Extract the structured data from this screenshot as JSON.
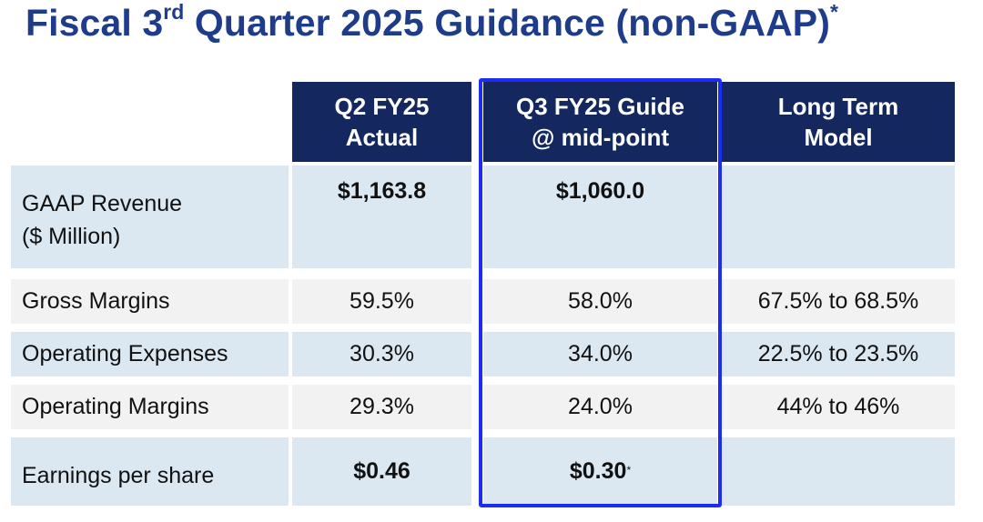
{
  "title": {
    "prefix": "Fiscal 3",
    "superscript": "rd",
    "rest": " Quarter 2025 Guidance (non-GAAP)",
    "asterisk": "*"
  },
  "columns": [
    {
      "line1": "Q2 FY25",
      "line2": "Actual"
    },
    {
      "line1": "Q3 FY25 Guide",
      "line2": "@ mid-point"
    },
    {
      "line1": "Long Term",
      "line2": "Model"
    }
  ],
  "rows": [
    {
      "label_line1": "GAAP Revenue",
      "label_line2": "($ Million)",
      "q2": "$1,163.8",
      "q3": "$1,060.0",
      "lt": ""
    },
    {
      "label": "Gross Margins",
      "q2": "59.5%",
      "q3": "58.0%",
      "lt": "67.5% to 68.5%"
    },
    {
      "label": "Operating Expenses",
      "q2": "30.3%",
      "q3": "34.0%",
      "lt": "22.5% to 23.5%"
    },
    {
      "label": "Operating Margins",
      "q2": "29.3%",
      "q3": "24.0%",
      "lt": "44% to 46%"
    },
    {
      "label": "Earnings per share",
      "q2": "$0.46",
      "q3": "$0.30",
      "q3_note": "*",
      "lt": ""
    }
  ],
  "colors": {
    "title": "#1f3c8a",
    "header_bg": "#14285f",
    "row_blue": "#dce8f1",
    "row_gray": "#f2f2f2",
    "highlight_border": "#1d2cf2"
  }
}
